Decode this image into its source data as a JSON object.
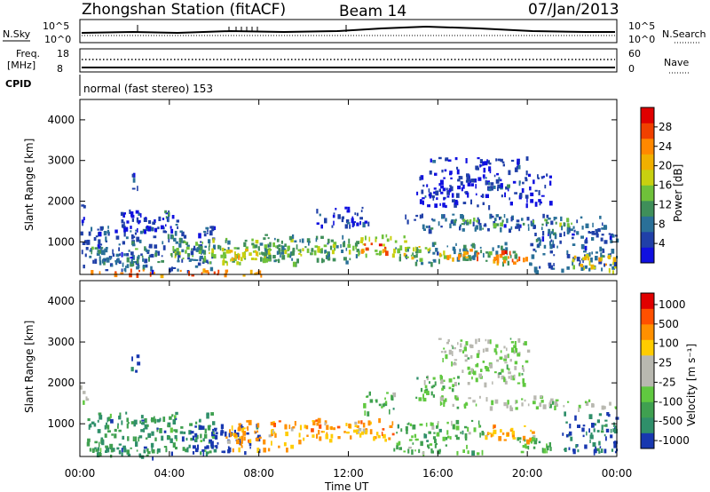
{
  "header": {
    "station": "Zhongshan Station (fitACF)",
    "beam": "Beam 14",
    "date": "07/Jan/2013"
  },
  "panel_labels": {
    "nsky": "N.Sky",
    "nsearch": "N.Search",
    "freq_line1": "Freq.",
    "freq_line2": "[MHz]",
    "nave": "Nave",
    "cpid": "CPID",
    "cpid_text": "normal (fast stereo) 153",
    "nsky_ticks": [
      "10^5",
      "10^0"
    ],
    "nsearch_ticks": [
      "10^5",
      "10^0"
    ],
    "freq_ticks": [
      "18",
      "8"
    ],
    "nave_ticks": [
      "60",
      "0"
    ]
  },
  "chart_data": [
    {
      "type": "heatmap",
      "name": "power",
      "ylabel": "Slant Range [km]",
      "xlabel": "",
      "y_ticks": [
        "1000",
        "2000",
        "3000",
        "4000"
      ],
      "x_ticks": [
        "00:00",
        "04:00",
        "08:00",
        "12:00",
        "16:00",
        "20:00",
        "00:00"
      ],
      "ylim": [
        200,
        4500
      ],
      "xlim_hours": [
        0,
        24
      ],
      "colorbar": {
        "label": "Power [dB]",
        "tick_labels": [
          "4",
          "8",
          "12",
          "16",
          "20",
          "24",
          "28"
        ],
        "colors": [
          "#1010e0",
          "#2040a8",
          "#2a7098",
          "#3f8f5a",
          "#6fc13a",
          "#c8d010",
          "#f0b000",
          "#ff8800",
          "#f04000",
          "#e00000"
        ]
      },
      "regions": [
        {
          "t0": 0.0,
          "t1": 0.3,
          "r0": 1350,
          "r1": 1950,
          "level": 1
        },
        {
          "t0": 0.0,
          "t1": 0.3,
          "r0": 400,
          "r1": 1300,
          "level": 2
        },
        {
          "t0": 0.3,
          "t1": 6.0,
          "r0": 300,
          "r1": 1400,
          "level": 2
        },
        {
          "t0": 0.4,
          "t1": 3.5,
          "r0": 400,
          "r1": 900,
          "level": 3
        },
        {
          "t0": 2.2,
          "t1": 2.6,
          "r0": 2300,
          "r1": 2700,
          "level": 2
        },
        {
          "t0": 1.5,
          "t1": 4.5,
          "r0": 1300,
          "r1": 1800,
          "level": 1
        },
        {
          "t0": 3.7,
          "t1": 4.0,
          "r0": 1600,
          "r1": 1800,
          "level": 3
        },
        {
          "t0": 0.3,
          "t1": 6.5,
          "r0": 200,
          "r1": 350,
          "level": 8
        },
        {
          "t0": 6.5,
          "t1": 8.2,
          "r0": 200,
          "r1": 350,
          "level": 7
        },
        {
          "t0": 4.0,
          "t1": 9.5,
          "r0": 600,
          "r1": 1100,
          "level": 4
        },
        {
          "t0": 5.5,
          "t1": 8.5,
          "r0": 500,
          "r1": 900,
          "level": 5
        },
        {
          "t0": 6.5,
          "t1": 8.0,
          "r0": 600,
          "r1": 850,
          "level": 6
        },
        {
          "t0": 8.0,
          "t1": 12.5,
          "r0": 500,
          "r1": 1200,
          "level": 3
        },
        {
          "t0": 9.0,
          "t1": 12.0,
          "r0": 700,
          "r1": 950,
          "level": 5
        },
        {
          "t0": 10.5,
          "t1": 13.0,
          "r0": 1400,
          "r1": 1900,
          "level": 1
        },
        {
          "t0": 12.0,
          "t1": 14.5,
          "r0": 700,
          "r1": 1200,
          "level": 5
        },
        {
          "t0": 12.5,
          "t1": 13.7,
          "r0": 750,
          "r1": 1000,
          "level": 8
        },
        {
          "t0": 14.0,
          "t1": 19.5,
          "r0": 500,
          "r1": 1000,
          "level": 3
        },
        {
          "t0": 14.5,
          "t1": 16.5,
          "r0": 600,
          "r1": 900,
          "level": 5
        },
        {
          "t0": 16.0,
          "t1": 17.5,
          "r0": 600,
          "r1": 900,
          "level": 7
        },
        {
          "t0": 17.5,
          "t1": 20.0,
          "r0": 500,
          "r1": 800,
          "level": 8
        },
        {
          "t0": 14.5,
          "t1": 23.5,
          "r0": 1300,
          "r1": 1700,
          "level": 2
        },
        {
          "t0": 16.0,
          "t1": 22.0,
          "r0": 1450,
          "r1": 1600,
          "level": 4
        },
        {
          "t0": 15.0,
          "t1": 21.0,
          "r0": 1900,
          "r1": 2700,
          "level": 1
        },
        {
          "t0": 15.5,
          "t1": 20.0,
          "r0": 2750,
          "r1": 3100,
          "level": 1
        },
        {
          "t0": 18.0,
          "t1": 20.0,
          "r0": 2300,
          "r1": 2600,
          "level": 2
        },
        {
          "t0": 20.0,
          "t1": 24.0,
          "r0": 300,
          "r1": 1400,
          "level": 2
        },
        {
          "t0": 22.0,
          "t1": 24.0,
          "r0": 300,
          "r1": 700,
          "level": 6
        }
      ]
    },
    {
      "type": "heatmap",
      "name": "velocity",
      "ylabel": "Slant Range [km]",
      "xlabel": "Time UT",
      "y_ticks": [
        "1000",
        "2000",
        "3000",
        "4000"
      ],
      "x_ticks": [
        "00:00",
        "04:00",
        "08:00",
        "12:00",
        "16:00",
        "20:00",
        "00:00"
      ],
      "ylim": [
        200,
        4500
      ],
      "xlim_hours": [
        0,
        24
      ],
      "colorbar": {
        "label": "Velocity [m s⁻¹]",
        "tick_labels": [
          "1000",
          "500",
          "100",
          "25",
          "-25",
          "-100",
          "-500",
          "-1000"
        ],
        "colors": [
          "#1838b0",
          "#2f8f6a",
          "#3fa050",
          "#60c840",
          "#b8b8b0",
          "#b8b8b0",
          "#ffcc00",
          "#ff9000",
          "#ff5000",
          "#e00000"
        ]
      },
      "regions": [
        {
          "t0": 0.0,
          "t1": 0.3,
          "r0": 1350,
          "r1": 1950,
          "level": 4
        },
        {
          "t0": 0.3,
          "t1": 6.0,
          "r0": 300,
          "r1": 1300,
          "level": 2
        },
        {
          "t0": 2.2,
          "t1": 2.6,
          "r0": 2300,
          "r1": 2700,
          "level": 1
        },
        {
          "t0": 0.5,
          "t1": 3.5,
          "r0": 200,
          "r1": 450,
          "level": 2
        },
        {
          "t0": 4.8,
          "t1": 8.0,
          "r0": 300,
          "r1": 1000,
          "level": 0
        },
        {
          "t0": 6.5,
          "t1": 9.5,
          "r0": 400,
          "r1": 1100,
          "level": 7
        },
        {
          "t0": 9.5,
          "t1": 14.0,
          "r0": 600,
          "r1": 1150,
          "level": 7
        },
        {
          "t0": 12.5,
          "t1": 14.0,
          "r0": 1300,
          "r1": 1800,
          "level": 3
        },
        {
          "t0": 14.0,
          "t1": 18.0,
          "r0": 300,
          "r1": 1100,
          "level": 3
        },
        {
          "t0": 15.0,
          "t1": 17.0,
          "r0": 1600,
          "r1": 2200,
          "level": 3
        },
        {
          "t0": 16.0,
          "t1": 22.0,
          "r0": 1400,
          "r1": 1700,
          "level": 4
        },
        {
          "t0": 16.0,
          "t1": 20.0,
          "r0": 2000,
          "r1": 3100,
          "level": 4
        },
        {
          "t0": 18.0,
          "t1": 20.5,
          "r0": 600,
          "r1": 1000,
          "level": 7
        },
        {
          "t0": 19.5,
          "t1": 21.5,
          "r0": 300,
          "r1": 700,
          "level": 3
        },
        {
          "t0": 21.5,
          "t1": 24.0,
          "r0": 300,
          "r1": 1300,
          "level": 1
        },
        {
          "t0": 22.0,
          "t1": 24.0,
          "r0": 1400,
          "r1": 1600,
          "level": 4
        }
      ]
    }
  ]
}
